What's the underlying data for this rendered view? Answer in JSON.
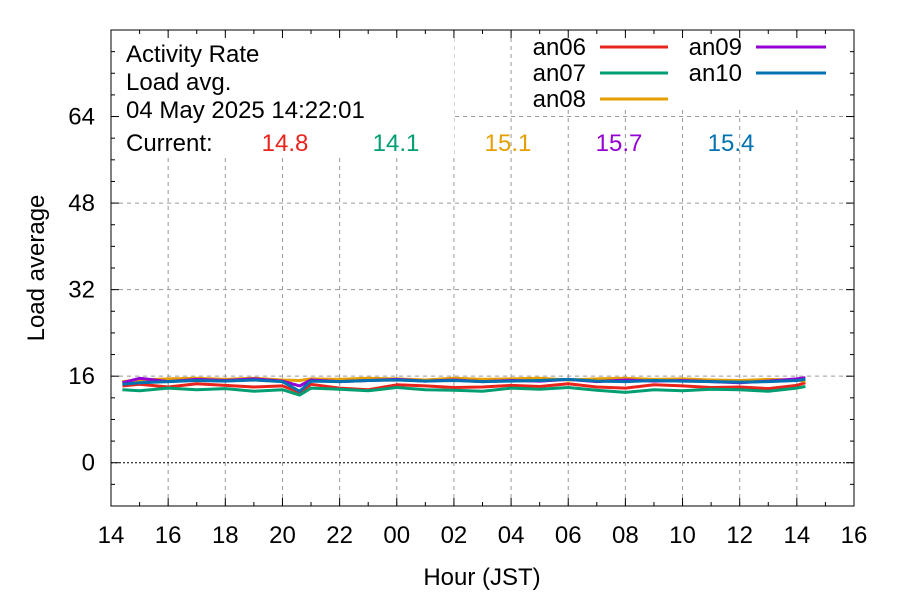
{
  "chart_data": {
    "type": "line",
    "title_lines": [
      "Activity Rate",
      "Load avg.",
      "04 May 2025 14:22:01"
    ],
    "current_label": "Current:",
    "current_values": [
      {
        "text": "14.8",
        "color": "#e8241c"
      },
      {
        "text": "14.1",
        "color": "#009e73"
      },
      {
        "text": "15.1",
        "color": "#e69f00"
      },
      {
        "text": "15.7",
        "color": "#9400d3"
      },
      {
        "text": "15.4",
        "color": "#0072b2"
      }
    ],
    "xlabel": "Hour (JST)",
    "ylabel": "Load average",
    "xlim": [
      14,
      40
    ],
    "ylim": [
      -8,
      80
    ],
    "x_ticks": [
      {
        "value": 14,
        "label": "14"
      },
      {
        "value": 16,
        "label": "16"
      },
      {
        "value": 18,
        "label": "18"
      },
      {
        "value": 20,
        "label": "20"
      },
      {
        "value": 22,
        "label": "22"
      },
      {
        "value": 24,
        "label": "00"
      },
      {
        "value": 26,
        "label": "02"
      },
      {
        "value": 28,
        "label": "04"
      },
      {
        "value": 30,
        "label": "06"
      },
      {
        "value": 32,
        "label": "08"
      },
      {
        "value": 34,
        "label": "10"
      },
      {
        "value": 36,
        "label": "12"
      },
      {
        "value": 38,
        "label": "14"
      },
      {
        "value": 40,
        "label": "16"
      }
    ],
    "y_ticks": [
      {
        "value": 0,
        "label": "0"
      },
      {
        "value": 16,
        "label": "16"
      },
      {
        "value": 32,
        "label": "32"
      },
      {
        "value": 48,
        "label": "48"
      },
      {
        "value": 64,
        "label": "64"
      }
    ],
    "grid": true,
    "legend_position": "top-right",
    "series": [
      {
        "name": "an06",
        "color": "#e8241c",
        "x": [
          14.4,
          15,
          16,
          17,
          18,
          19,
          20,
          20.6,
          21,
          22,
          23,
          24,
          25,
          26,
          27,
          28,
          29,
          30,
          31,
          32,
          33,
          34,
          35,
          36,
          37,
          38,
          38.3
        ],
        "y": [
          14.2,
          14.5,
          14.0,
          14.6,
          14.3,
          14.0,
          14.2,
          13.0,
          14.5,
          13.8,
          13.5,
          14.4,
          14.2,
          13.9,
          14.0,
          14.3,
          14.1,
          14.6,
          14.0,
          13.8,
          14.4,
          14.2,
          13.9,
          14.0,
          13.7,
          14.3,
          14.8
        ]
      },
      {
        "name": "an07",
        "color": "#009e73",
        "x": [
          14.4,
          15,
          16,
          17,
          18,
          19,
          20,
          20.6,
          21,
          22,
          23,
          24,
          25,
          26,
          27,
          28,
          29,
          30,
          31,
          32,
          33,
          34,
          35,
          36,
          37,
          38,
          38.3
        ],
        "y": [
          13.5,
          13.3,
          13.8,
          13.5,
          13.7,
          13.2,
          13.5,
          12.5,
          13.8,
          13.6,
          13.3,
          13.9,
          13.5,
          13.4,
          13.2,
          13.8,
          13.6,
          13.9,
          13.4,
          13.0,
          13.5,
          13.3,
          13.6,
          13.5,
          13.2,
          13.8,
          14.1
        ]
      },
      {
        "name": "an08",
        "color": "#e69f00",
        "x": [
          14.4,
          15,
          16,
          17,
          18,
          19,
          20,
          20.6,
          21,
          22,
          23,
          24,
          25,
          26,
          27,
          28,
          29,
          30,
          31,
          32,
          33,
          34,
          35,
          36,
          37,
          38,
          38.3
        ],
        "y": [
          15.0,
          15.3,
          15.5,
          15.6,
          15.4,
          15.6,
          15.3,
          15.2,
          15.5,
          15.4,
          15.6,
          15.5,
          15.3,
          15.6,
          15.4,
          15.5,
          15.6,
          15.3,
          15.5,
          15.6,
          15.4,
          15.5,
          15.3,
          15.2,
          15.4,
          15.3,
          15.1
        ]
      },
      {
        "name": "an09",
        "color": "#9400d3",
        "x": [
          14.4,
          15,
          16,
          17,
          18,
          19,
          20,
          20.6,
          21,
          22,
          23,
          24,
          25,
          26,
          27,
          28,
          29,
          30,
          31,
          32,
          33,
          34,
          35,
          36,
          37,
          38,
          38.3
        ],
        "y": [
          14.8,
          15.6,
          15.0,
          15.4,
          15.2,
          15.5,
          15.1,
          14.2,
          15.3,
          15.0,
          15.2,
          15.4,
          15.1,
          15.3,
          15.0,
          15.2,
          15.1,
          15.4,
          15.0,
          15.3,
          15.1,
          15.2,
          15.0,
          14.8,
          15.1,
          15.5,
          15.7
        ]
      },
      {
        "name": "an10",
        "color": "#0072b2",
        "x": [
          14.4,
          15,
          16,
          17,
          18,
          19,
          20,
          20.6,
          21,
          22,
          23,
          24,
          25,
          26,
          27,
          28,
          29,
          30,
          31,
          32,
          33,
          34,
          35,
          36,
          37,
          38,
          38.3
        ],
        "y": [
          14.5,
          14.8,
          15.0,
          15.2,
          15.1,
          15.3,
          15.0,
          13.2,
          15.1,
          15.0,
          15.2,
          15.3,
          15.1,
          15.2,
          15.0,
          15.1,
          15.2,
          15.4,
          15.1,
          15.0,
          15.2,
          15.1,
          15.0,
          14.9,
          15.0,
          15.2,
          15.4
        ]
      }
    ]
  }
}
